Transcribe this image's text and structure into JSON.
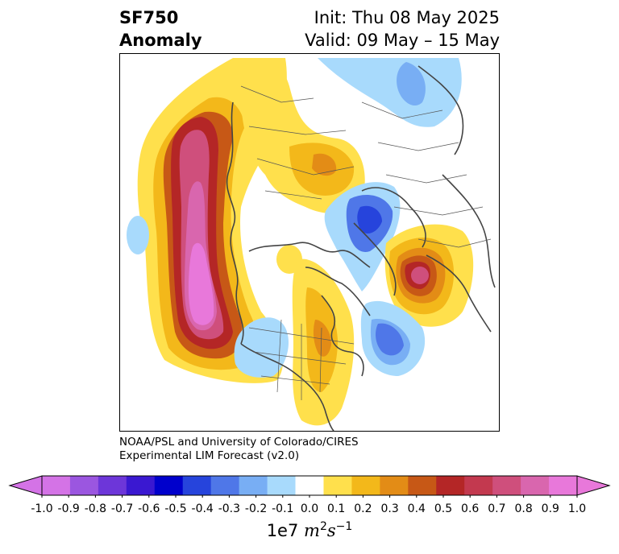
{
  "title": {
    "left_line1": "SF750",
    "left_line2": "Anomaly",
    "right_line1": "Init: Thu 08 May 2025",
    "right_line2": "Valid: 09 May – 15 May"
  },
  "credit": {
    "line1": "NOAA/PSL and University of Colorado/CIRES",
    "line2": "Experimental LIM Forecast (v2.0)"
  },
  "colorbar": {
    "ticks": [
      "-1.0",
      "-0.9",
      "-0.8",
      "-0.7",
      "-0.6",
      "-0.5",
      "-0.4",
      "-0.3",
      "-0.2",
      "-0.1",
      "0.0",
      "0.1",
      "0.2",
      "0.3",
      "0.4",
      "0.5",
      "0.6",
      "0.7",
      "0.8",
      "0.9",
      "1.0"
    ],
    "colors": [
      "#d473e6",
      "#9b56e0",
      "#6d36d9",
      "#3a18d1",
      "#0000cc",
      "#2644dc",
      "#4f77e8",
      "#78aef4",
      "#a8dafc",
      "#ffffff",
      "#ffe04c",
      "#f3b81a",
      "#e38c16",
      "#c75816",
      "#b42626",
      "#c3394f",
      "#cf4f7c",
      "#d966ae",
      "#e878da"
    ],
    "unit_prefix": "1e7",
    "unit_math": "m",
    "unit_exp": "2",
    "unit_math2": "s",
    "unit_exp2": "−1"
  }
}
